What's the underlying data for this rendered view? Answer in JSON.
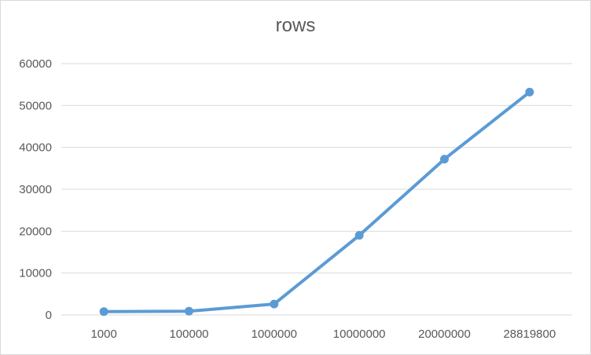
{
  "chart_data": {
    "type": "line",
    "title": "rows",
    "xlabel": "",
    "ylabel": "",
    "categories": [
      "1000",
      "100000",
      "1000000",
      "10000000",
      "20000000",
      "28819800"
    ],
    "series": [
      {
        "values": [
          800,
          900,
          2600,
          19000,
          37200,
          53200
        ],
        "color": "#5b9bd5"
      }
    ],
    "ylim": [
      0,
      60000
    ],
    "yticks": [
      "0",
      "10000",
      "20000",
      "30000",
      "40000",
      "50000",
      "60000"
    ],
    "grid": true,
    "legend": "none"
  }
}
